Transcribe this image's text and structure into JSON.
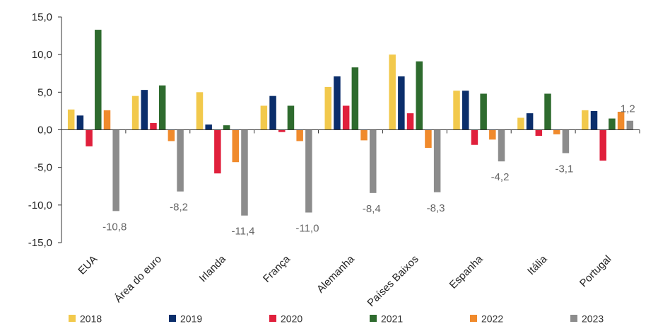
{
  "chart_data": {
    "type": "bar",
    "categories": [
      "EUA",
      "Área do euro",
      "Irlanda",
      "França",
      "Alemanha",
      "Países Baixos",
      "Espanha",
      "Itália",
      "Portugal"
    ],
    "series": [
      {
        "name": "2018",
        "color": "#f2c94c",
        "values": [
          2.7,
          4.5,
          5.0,
          3.2,
          5.7,
          10.0,
          5.2,
          1.6,
          2.6
        ]
      },
      {
        "name": "2019",
        "color": "#0b2e6b",
        "values": [
          1.9,
          5.3,
          0.7,
          4.5,
          7.1,
          7.1,
          5.2,
          2.2,
          2.5
        ]
      },
      {
        "name": "2020",
        "color": "#e0203c",
        "values": [
          -2.2,
          0.9,
          -5.8,
          -0.3,
          3.2,
          2.2,
          -2.0,
          -0.8,
          -4.1
        ]
      },
      {
        "name": "2021",
        "color": "#2e6b2e",
        "values": [
          13.3,
          5.9,
          0.6,
          3.2,
          8.3,
          9.1,
          4.8,
          4.8,
          1.5
        ]
      },
      {
        "name": "2022",
        "color": "#f08a2c",
        "values": [
          2.6,
          -1.5,
          -4.3,
          -1.5,
          -1.4,
          -2.4,
          -1.3,
          -0.6,
          2.4
        ]
      },
      {
        "name": "2023",
        "color": "#8c8c8c",
        "values": [
          -10.8,
          -8.2,
          -11.4,
          -11.0,
          -8.4,
          -8.3,
          -4.2,
          -3.1,
          1.2
        ]
      }
    ],
    "data_labels": {
      "series": "2023",
      "texts": [
        "-10,8",
        "-8,2",
        "-11,4",
        "-11,0",
        "-8,4",
        "-8,3",
        "-4,2",
        "-3,1",
        "1,2"
      ]
    },
    "ylim": [
      -15,
      15
    ],
    "yticks": [
      15,
      10,
      5,
      0,
      -5,
      -10,
      -15
    ],
    "ytick_labels": [
      "15,0",
      "10,0",
      "5,0",
      "0,0",
      "-5,0",
      "-10,0",
      "-15,0"
    ],
    "grid": false,
    "legend_position": "bottom",
    "title": "",
    "xlabel": "",
    "ylabel": ""
  }
}
